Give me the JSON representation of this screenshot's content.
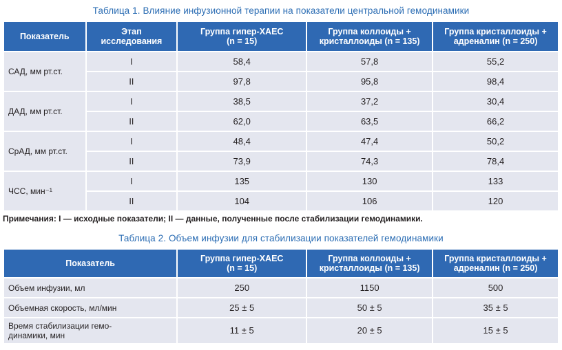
{
  "table1": {
    "caption": "Таблица 1.  Влияние инфузионной терапии на показатели центральной гемодинамики",
    "headers": [
      "Показатель",
      "Этап\nисследования",
      "Группа гипер-ХАЕС\n(n = 15)",
      "Группа коллоиды +\nкристаллоиды (n = 135)",
      "Группа кристаллоиды +\nадреналин (n = 250)"
    ],
    "rows": [
      {
        "indicator": "САД, мм рт.ст.",
        "stages": [
          {
            "stage": "I",
            "values": [
              "58,4",
              "57,8",
              "55,2"
            ]
          },
          {
            "stage": "II",
            "values": [
              "97,8",
              "95,8",
              "98,4"
            ]
          }
        ]
      },
      {
        "indicator": "ДАД, мм рт.ст.",
        "stages": [
          {
            "stage": "I",
            "values": [
              "38,5",
              "37,2",
              "30,4"
            ]
          },
          {
            "stage": "II",
            "values": [
              "62,0",
              "63,5",
              "66,2"
            ]
          }
        ]
      },
      {
        "indicator": "СрАД, мм рт.ст.",
        "stages": [
          {
            "stage": "I",
            "values": [
              "48,4",
              "47,4",
              "50,2"
            ]
          },
          {
            "stage": "II",
            "values": [
              "73,9",
              "74,3",
              "78,4"
            ]
          }
        ]
      },
      {
        "indicator": "ЧСС, мин⁻¹",
        "stages": [
          {
            "stage": "I",
            "values": [
              "135",
              "130",
              "133"
            ]
          },
          {
            "stage": "II",
            "values": [
              "104",
              "106",
              "120"
            ]
          }
        ]
      }
    ],
    "note": "Примечания:  I — исходные показатели; II — данные, полученные после стабилизации гемодинамики."
  },
  "table2": {
    "caption": "Таблица 2.  Объем инфузии для стабилизации показателей гемодинамики",
    "headers": [
      "Показатель",
      "Группа гипер-ХАЕС\n(n = 15)",
      "Группа коллоиды +\nкристаллоиды (n = 135)",
      "Группа кристаллоиды +\nадреналин (n = 250)"
    ],
    "rows": [
      {
        "indicator": "Объем инфузии, мл",
        "values": [
          "250",
          "1150",
          "500"
        ]
      },
      {
        "indicator": "Объемная скорость, мл/мин",
        "values": [
          "25 ± 5",
          "50 ± 5",
          "35 ± 5"
        ]
      },
      {
        "indicator": "Время стабилизации гемо-\nдинамики, мин",
        "values": [
          "11 ± 5",
          "20 ± 5",
          "15 ± 5"
        ]
      }
    ]
  },
  "colors": {
    "header_bg": "#2f69b3",
    "cell_bg": "#e4e6ef",
    "caption": "#2a6cb3"
  }
}
